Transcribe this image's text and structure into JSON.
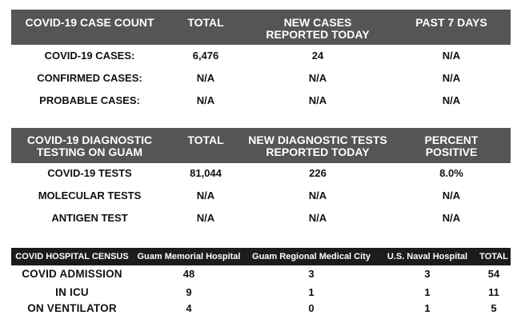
{
  "case_count": {
    "headers": {
      "col1": "COVID-19 CASE COUNT",
      "col2": "TOTAL",
      "col3_line1": "NEW CASES",
      "col3_line2": "REPORTED TODAY",
      "col4": "PAST 7 DAYS"
    },
    "rows": [
      {
        "label": "COVID-19 CASES:",
        "total": "6,476",
        "new": "24",
        "past7": "N/A"
      },
      {
        "label": "CONFIRMED CASES:",
        "total": "N/A",
        "new": "N/A",
        "past7": "N/A"
      },
      {
        "label": "PROBABLE CASES:",
        "total": "N/A",
        "new": "N/A",
        "past7": "N/A"
      }
    ]
  },
  "diagnostic_testing": {
    "headers": {
      "col1_line1": "COVID-19 DIAGNOSTIC",
      "col1_line2": "TESTING ON GUAM",
      "col2": "TOTAL",
      "col3_line1": "NEW DIAGNOSTIC TESTS",
      "col3_line2": "REPORTED TODAY",
      "col4_line1": "PERCENT",
      "col4_line2": "POSITIVE"
    },
    "rows": [
      {
        "label": "COVID-19 TESTS",
        "total": "81,044",
        "new": "226",
        "percent": "8.0%"
      },
      {
        "label": "MOLECULAR TESTS",
        "total": "N/A",
        "new": "N/A",
        "percent": "N/A"
      },
      {
        "label": "ANTIGEN TEST",
        "total": "N/A",
        "new": "N/A",
        "percent": "N/A"
      }
    ]
  },
  "hospital_census": {
    "headers": {
      "col1": "COVID HOSPITAL CENSUS",
      "col2": "Guam Memorial Hospital",
      "col3": "Guam Regional Medical City",
      "col4": "U.S. Naval Hospital",
      "col5": "TOTAL"
    },
    "rows": [
      {
        "label": "COVID ADMISSION",
        "gmh": "48",
        "grmc": "3",
        "usnh": "3",
        "total": "54"
      },
      {
        "label": "IN ICU",
        "gmh": "9",
        "grmc": "1",
        "usnh": "1",
        "total": "11"
      },
      {
        "label": "ON VENTILATOR",
        "gmh": "4",
        "grmc": "0",
        "usnh": "1",
        "total": "5"
      }
    ]
  }
}
